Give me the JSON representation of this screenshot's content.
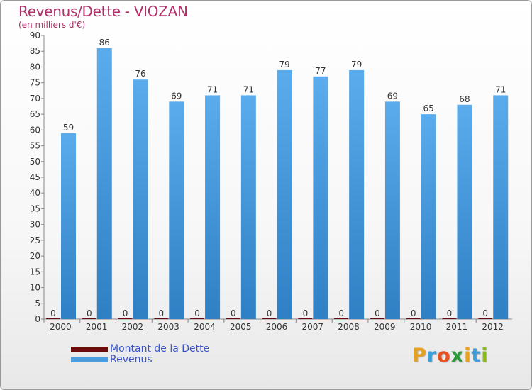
{
  "header": {
    "title": "Revenus/Dette - VIOZAN",
    "subtitle": "(en milliers d'€)"
  },
  "legend": [
    {
      "label": "Montant de la Dette",
      "color": "#6b0a0a"
    },
    {
      "label": "Revenus",
      "color": "#4a9ee0"
    }
  ],
  "logo": {
    "letters": [
      "P",
      "r",
      "o",
      "x",
      "i",
      "t",
      "i"
    ],
    "colors": [
      "#e8a020",
      "#3aa0dc",
      "#e85020",
      "#2a9a3a",
      "#e8a020",
      "#3aa0dc",
      "#8ab820"
    ]
  },
  "chart_data": {
    "type": "bar",
    "title": "Revenus/Dette - VIOZAN",
    "subtitle": "(en milliers d'€)",
    "categories": [
      "2000",
      "2001",
      "2002",
      "2003",
      "2004",
      "2005",
      "2006",
      "2007",
      "2008",
      "2009",
      "2010",
      "2011",
      "2012"
    ],
    "series": [
      {
        "name": "Montant de la Dette",
        "color": "#6b0a0a",
        "values": [
          0,
          0,
          0,
          0,
          0,
          0,
          0,
          0,
          0,
          0,
          0,
          0,
          0
        ]
      },
      {
        "name": "Revenus",
        "color": "#4a9ee0",
        "values": [
          59,
          86,
          76,
          69,
          71,
          71,
          79,
          77,
          79,
          69,
          65,
          68,
          71
        ]
      }
    ],
    "ylim": [
      0,
      90
    ],
    "ytick_step": 5,
    "grid": false,
    "legend_position": "bottom-left"
  }
}
